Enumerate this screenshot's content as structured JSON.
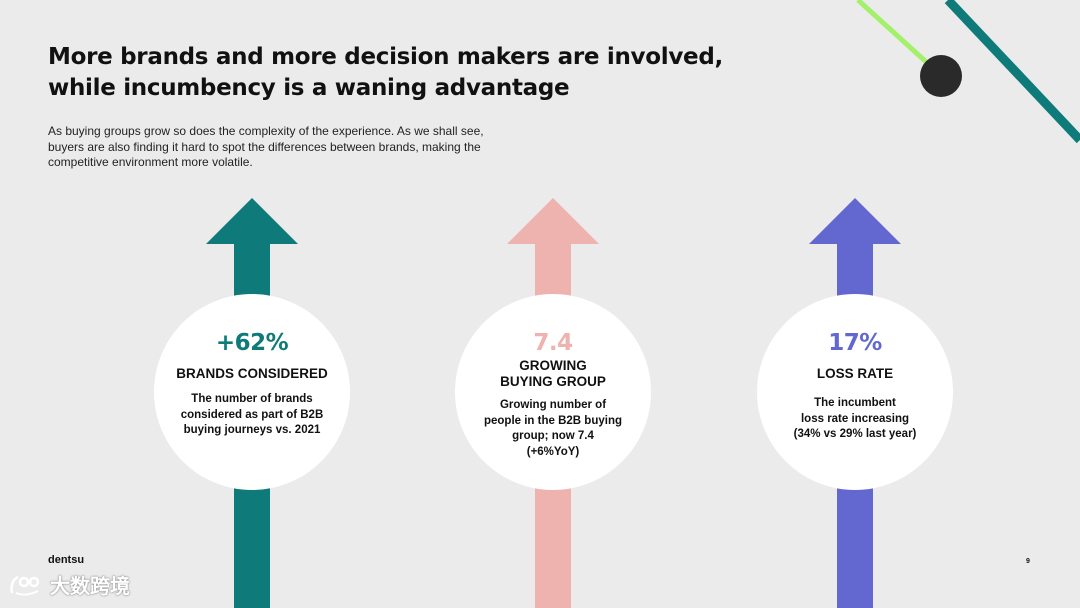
{
  "header": {
    "title_lines": [
      "More brands and more decision makers are involved,",
      "while incumbency is a waning advantage"
    ],
    "subtitle_lines": [
      "As buying groups grow so does the complexity of the experience. As we shall see,",
      "buyers are also finding it hard to spot the differences between brands, making the",
      "competitive environment more volatile."
    ]
  },
  "stats": [
    {
      "value": "+62%",
      "color": "#0e7a7a",
      "label_lines": [
        "BRANDS CONSIDERED"
      ],
      "desc_lines": [
        "The number of brands",
        "considered as part of B2B",
        "buying journeys vs. 2021"
      ]
    },
    {
      "value": "7.4",
      "color": "#eeb3ae",
      "label_lines": [
        "GROWING",
        "BUYING GROUP"
      ],
      "desc_lines": [
        "Growing number of",
        "people in the B2B buying",
        "group; now 7.4",
        "(+6%YoY)"
      ]
    },
    {
      "value": "17%",
      "color": "#6268d0",
      "label_lines": [
        "LOSS RATE"
      ],
      "desc_lines": [
        "The incumbent",
        "loss rate increasing",
        "(34% vs 29% last year)"
      ]
    }
  ],
  "footer": {
    "brand": "dentsu",
    "page_number": "9"
  },
  "watermark": {
    "text": "大数跨境"
  },
  "colors": {
    "background": "#ebebeb",
    "deco_green": "#a3f06a",
    "deco_teal": "#0e7a7a",
    "deco_dot": "#2a2a2a"
  }
}
